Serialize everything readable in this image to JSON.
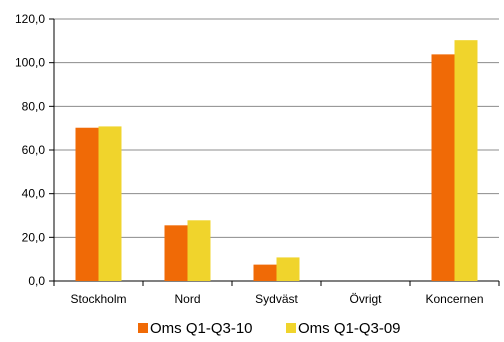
{
  "chart_data": {
    "type": "bar",
    "categories": [
      "Stockholm",
      "Nord",
      "Sydväst",
      "Övrigt",
      "Koncernen"
    ],
    "series": [
      {
        "name": "Oms Q1-Q3-10",
        "values": [
          70.2,
          25.5,
          7.5,
          0,
          103.8
        ],
        "color": "#F06A06"
      },
      {
        "name": "Oms Q1-Q3-09",
        "values": [
          70.8,
          27.8,
          10.8,
          0,
          110.3
        ],
        "color": "#F0D42C"
      }
    ],
    "yticks": [
      "0,0",
      "20,0",
      "40,0",
      "60,0",
      "80,0",
      "100,0",
      "120,0"
    ],
    "ylim": [
      0,
      120
    ],
    "grid": true,
    "legend_position": "bottom"
  }
}
